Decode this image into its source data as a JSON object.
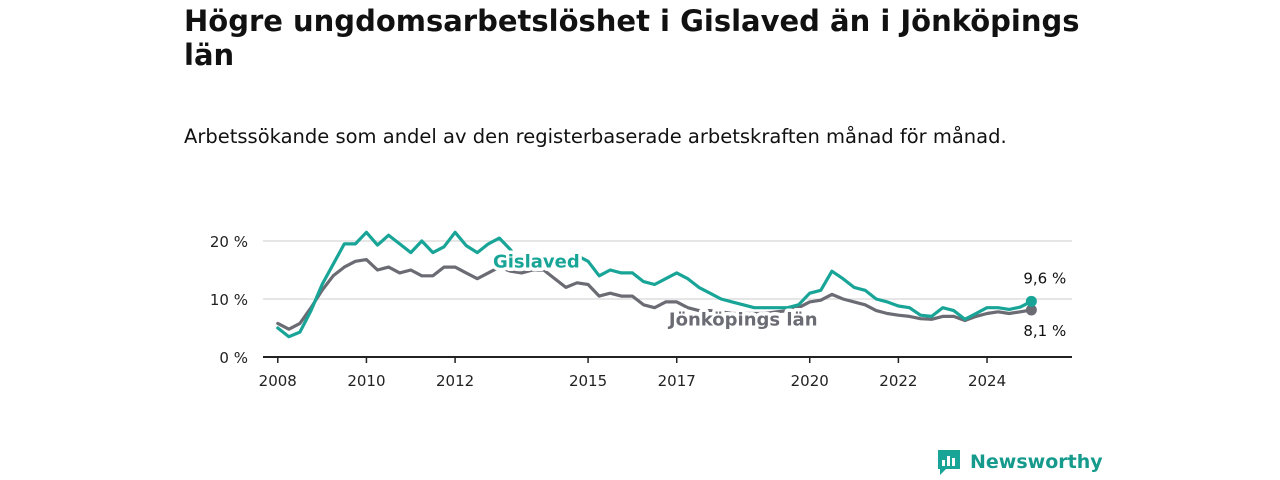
{
  "title": "Högre ungdomsarbetslöshet i Gislaved än i Jönköpings län",
  "subtitle": "Arbetssökande som andel av den registerbaserade arbetskraften månad för månad.",
  "brand": {
    "name": "Newsworthy",
    "icon": "chart-logo-icon"
  },
  "colors": {
    "gislaved": "#18a597",
    "lan": "#6b6b74",
    "grid": "#d8d8d8",
    "axis": "#222222"
  },
  "chart_data": {
    "type": "line",
    "title": "Högre ungdomsarbetslöshet i Gislaved än i Jönköpings län",
    "subtitle": "Arbetssökande som andel av den registerbaserade arbetskraften månad för månad.",
    "ylim": [
      0,
      20
    ],
    "yticks": [
      0,
      10,
      20
    ],
    "ytick_labels": [
      "0 %",
      "10 %",
      "20 %"
    ],
    "xlim": [
      "2007-09",
      "2025-12"
    ],
    "xticks": [
      "2008-01",
      "2010-01",
      "2012-01",
      "2015-01",
      "2017-01",
      "2020-01",
      "2022-01",
      "2024-01"
    ],
    "xtick_labels": [
      "2008",
      "2010",
      "2012",
      "2015",
      "2017",
      "2020",
      "2022",
      "2024"
    ],
    "grid": true,
    "series": [
      {
        "name": "Gislaved",
        "end_label": "9,6 %",
        "points": [
          [
            "2008-01",
            5.0
          ],
          [
            "2008-04",
            3.5
          ],
          [
            "2008-07",
            4.3
          ],
          [
            "2008-10",
            8.0
          ],
          [
            "2009-01",
            12.5
          ],
          [
            "2009-04",
            16.0
          ],
          [
            "2009-07",
            19.5
          ],
          [
            "2009-10",
            19.5
          ],
          [
            "2010-01",
            21.5
          ],
          [
            "2010-04",
            19.3
          ],
          [
            "2010-07",
            21.0
          ],
          [
            "2010-10",
            19.5
          ],
          [
            "2011-01",
            18.0
          ],
          [
            "2011-04",
            20.0
          ],
          [
            "2011-07",
            18.0
          ],
          [
            "2011-10",
            19.0
          ],
          [
            "2012-01",
            21.5
          ],
          [
            "2012-04",
            19.2
          ],
          [
            "2012-07",
            18.0
          ],
          [
            "2012-10",
            19.5
          ],
          [
            "2013-01",
            20.5
          ],
          [
            "2013-04",
            18.5
          ],
          [
            "2013-07",
            16.0
          ],
          [
            "2013-10",
            16.5
          ],
          [
            "2014-01",
            17.5
          ],
          [
            "2014-04",
            17.0
          ],
          [
            "2014-07",
            15.5
          ],
          [
            "2014-10",
            17.5
          ],
          [
            "2015-01",
            16.5
          ],
          [
            "2015-04",
            14.0
          ],
          [
            "2015-07",
            15.0
          ],
          [
            "2015-10",
            14.5
          ],
          [
            "2016-01",
            14.5
          ],
          [
            "2016-04",
            13.0
          ],
          [
            "2016-07",
            12.5
          ],
          [
            "2016-10",
            13.5
          ],
          [
            "2017-01",
            14.5
          ],
          [
            "2017-04",
            13.5
          ],
          [
            "2017-07",
            12.0
          ],
          [
            "2017-10",
            11.0
          ],
          [
            "2018-01",
            10.0
          ],
          [
            "2018-04",
            9.5
          ],
          [
            "2018-07",
            9.0
          ],
          [
            "2018-10",
            8.5
          ],
          [
            "2019-01",
            8.5
          ],
          [
            "2019-04",
            8.5
          ],
          [
            "2019-07",
            8.5
          ],
          [
            "2019-10",
            9.0
          ],
          [
            "2020-01",
            11.0
          ],
          [
            "2020-04",
            11.5
          ],
          [
            "2020-07",
            14.8
          ],
          [
            "2020-10",
            13.5
          ],
          [
            "2021-01",
            12.0
          ],
          [
            "2021-04",
            11.5
          ],
          [
            "2021-07",
            10.0
          ],
          [
            "2021-10",
            9.5
          ],
          [
            "2022-01",
            8.8
          ],
          [
            "2022-04",
            8.5
          ],
          [
            "2022-07",
            7.2
          ],
          [
            "2022-10",
            7.0
          ],
          [
            "2023-01",
            8.5
          ],
          [
            "2023-04",
            8.0
          ],
          [
            "2023-07",
            6.5
          ],
          [
            "2023-10",
            7.5
          ],
          [
            "2024-01",
            8.5
          ],
          [
            "2024-04",
            8.5
          ],
          [
            "2024-07",
            8.2
          ],
          [
            "2024-10",
            8.6
          ],
          [
            "2025-01",
            9.6
          ]
        ]
      },
      {
        "name": "Jönköpings län",
        "end_label": "8,1 %",
        "points": [
          [
            "2008-01",
            5.8
          ],
          [
            "2008-04",
            4.8
          ],
          [
            "2008-07",
            5.8
          ],
          [
            "2008-10",
            8.5
          ],
          [
            "2009-01",
            11.5
          ],
          [
            "2009-04",
            14.0
          ],
          [
            "2009-07",
            15.5
          ],
          [
            "2009-10",
            16.5
          ],
          [
            "2010-01",
            16.8
          ],
          [
            "2010-04",
            15.0
          ],
          [
            "2010-07",
            15.5
          ],
          [
            "2010-10",
            14.5
          ],
          [
            "2011-01",
            15.0
          ],
          [
            "2011-04",
            14.0
          ],
          [
            "2011-07",
            14.0
          ],
          [
            "2011-10",
            15.5
          ],
          [
            "2012-01",
            15.5
          ],
          [
            "2012-04",
            14.5
          ],
          [
            "2012-07",
            13.5
          ],
          [
            "2012-10",
            14.5
          ],
          [
            "2013-01",
            15.5
          ],
          [
            "2013-04",
            14.8
          ],
          [
            "2013-07",
            14.5
          ],
          [
            "2013-10",
            15.0
          ],
          [
            "2014-01",
            15.0
          ],
          [
            "2014-04",
            13.5
          ],
          [
            "2014-07",
            12.0
          ],
          [
            "2014-10",
            12.8
          ],
          [
            "2015-01",
            12.5
          ],
          [
            "2015-04",
            10.5
          ],
          [
            "2015-07",
            11.0
          ],
          [
            "2015-10",
            10.5
          ],
          [
            "2016-01",
            10.5
          ],
          [
            "2016-04",
            9.0
          ],
          [
            "2016-07",
            8.5
          ],
          [
            "2016-10",
            9.5
          ],
          [
            "2017-01",
            9.5
          ],
          [
            "2017-04",
            8.5
          ],
          [
            "2017-07",
            8.0
          ],
          [
            "2017-10",
            8.0
          ],
          [
            "2018-01",
            7.8
          ],
          [
            "2018-04",
            7.5
          ],
          [
            "2018-07",
            7.5
          ],
          [
            "2018-10",
            7.5
          ],
          [
            "2019-01",
            7.5
          ],
          [
            "2019-04",
            7.8
          ],
          [
            "2019-07",
            8.0
          ],
          [
            "2019-10",
            8.5
          ],
          [
            "2020-01",
            9.5
          ],
          [
            "2020-04",
            9.8
          ],
          [
            "2020-07",
            10.8
          ],
          [
            "2020-10",
            10.0
          ],
          [
            "2021-01",
            9.5
          ],
          [
            "2021-04",
            9.0
          ],
          [
            "2021-07",
            8.0
          ],
          [
            "2021-10",
            7.5
          ],
          [
            "2022-01",
            7.2
          ],
          [
            "2022-04",
            7.0
          ],
          [
            "2022-07",
            6.6
          ],
          [
            "2022-10",
            6.5
          ],
          [
            "2023-01",
            7.0
          ],
          [
            "2023-04",
            7.0
          ],
          [
            "2023-07",
            6.3
          ],
          [
            "2023-10",
            7.0
          ],
          [
            "2024-01",
            7.5
          ],
          [
            "2024-04",
            7.8
          ],
          [
            "2024-07",
            7.5
          ],
          [
            "2024-10",
            7.8
          ],
          [
            "2025-01",
            8.1
          ]
        ]
      }
    ]
  }
}
